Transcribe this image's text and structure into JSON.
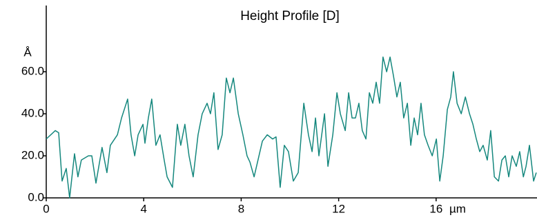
{
  "chart_data": {
    "type": "line",
    "title": "Height Profile [D]",
    "x_label": "µm",
    "y_label": "Å",
    "color": "#14877d",
    "xlim": [
      0,
      20.14
    ],
    "ylim": [
      0,
      91.5
    ],
    "xticks": [
      0,
      4,
      8,
      12,
      16
    ],
    "yticks": [
      {
        "value": 0,
        "label": "0.0"
      },
      {
        "value": 20,
        "label": "20.0"
      },
      {
        "value": 40,
        "label": "40.0"
      },
      {
        "value": 60,
        "label": "60.0"
      }
    ],
    "x": [
      0,
      0.37,
      0.51,
      0.65,
      0.82,
      0.96,
      1.16,
      1.3,
      1.44,
      1.73,
      1.87,
      2.04,
      2.29,
      2.49,
      2.63,
      2.92,
      3.09,
      3.34,
      3.48,
      3.63,
      3.77,
      3.97,
      4.05,
      4.19,
      4.33,
      4.5,
      4.67,
      4.84,
      4.96,
      5.18,
      5.38,
      5.52,
      5.69,
      5.86,
      6.03,
      6.23,
      6.4,
      6.6,
      6.74,
      6.88,
      7.05,
      7.22,
      7.39,
      7.54,
      7.68,
      7.88,
      8.07,
      8.24,
      8.36,
      8.53,
      8.73,
      8.87,
      9.07,
      9.29,
      9.43,
      9.6,
      9.77,
      9.94,
      10.14,
      10.34,
      10.57,
      10.76,
      10.91,
      11.05,
      11.19,
      11.42,
      11.56,
      11.76,
      11.93,
      12.07,
      12.27,
      12.41,
      12.55,
      12.69,
      12.83,
      12.97,
      13.12,
      13.26,
      13.4,
      13.54,
      13.68,
      13.82,
      13.97,
      14.11,
      14.25,
      14.39,
      14.53,
      14.67,
      14.82,
      14.96,
      15.1,
      15.24,
      15.38,
      15.52,
      15.67,
      15.84,
      16.01,
      16.15,
      16.29,
      16.46,
      16.6,
      16.71,
      16.86,
      17.03,
      17.2,
      17.37,
      17.51,
      17.65,
      17.79,
      17.93,
      18.1,
      18.24,
      18.39,
      18.56,
      18.7,
      18.84,
      18.98,
      19.12,
      19.29,
      19.43,
      19.58,
      19.69,
      19.83,
      20.0,
      20.11
    ],
    "values": [
      28,
      32,
      31,
      8,
      14,
      0,
      21,
      10,
      18,
      20,
      20,
      7,
      24,
      12,
      25,
      30,
      38,
      47,
      30,
      20,
      30,
      35,
      26,
      38,
      47,
      25,
      30,
      18,
      10,
      5,
      35,
      25,
      35,
      20,
      10,
      30,
      40,
      45,
      40,
      50,
      23,
      30,
      57,
      50,
      57,
      40,
      30,
      20,
      17,
      10,
      20,
      27,
      30,
      28,
      29,
      5,
      25,
      22,
      8,
      12,
      45,
      30,
      22,
      38,
      20,
      40,
      15,
      30,
      50,
      40,
      32,
      50,
      38,
      38,
      45,
      32,
      28,
      50,
      45,
      55,
      45,
      67,
      60,
      67,
      58,
      48,
      55,
      38,
      45,
      25,
      38,
      30,
      45,
      30,
      25,
      20,
      28,
      8,
      20,
      42,
      48,
      60,
      45,
      40,
      48,
      40,
      35,
      28,
      22,
      25,
      18,
      32,
      10,
      8,
      18,
      20,
      10,
      20,
      15,
      22,
      10,
      15,
      25,
      8,
      12
    ]
  }
}
